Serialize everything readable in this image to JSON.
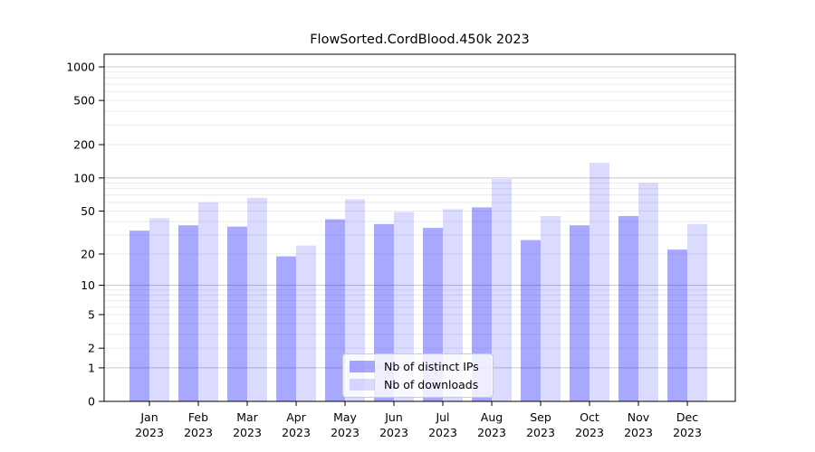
{
  "figure": {
    "background_color": "#ffffff",
    "axis_color": "#000000"
  },
  "chart_data": {
    "type": "bar",
    "title": "FlowSorted.CordBlood.450k 2023",
    "scale": "log1p",
    "grid": "on",
    "legend_position": "lower center",
    "categories": [
      {
        "month": "Jan",
        "year": "2023"
      },
      {
        "month": "Feb",
        "year": "2023"
      },
      {
        "month": "Mar",
        "year": "2023"
      },
      {
        "month": "Apr",
        "year": "2023"
      },
      {
        "month": "May",
        "year": "2023"
      },
      {
        "month": "Jun",
        "year": "2023"
      },
      {
        "month": "Jul",
        "year": "2023"
      },
      {
        "month": "Aug",
        "year": "2023"
      },
      {
        "month": "Sep",
        "year": "2023"
      },
      {
        "month": "Oct",
        "year": "2023"
      },
      {
        "month": "Nov",
        "year": "2023"
      },
      {
        "month": "Dec",
        "year": "2023"
      }
    ],
    "series": [
      {
        "name": "Nb of distinct IPs",
        "color": "#0000FF57",
        "values": [
          33,
          37,
          36,
          19,
          42,
          38,
          35,
          54,
          27,
          37,
          45,
          22
        ]
      },
      {
        "name": "Nb of downloads",
        "color": "#0000FF24",
        "values": [
          43,
          60,
          66,
          24,
          64,
          49,
          52,
          98,
          45,
          137,
          90,
          38
        ]
      }
    ],
    "ylim": [
      0,
      1300
    ],
    "y_ticks": [
      {
        "value": 0,
        "label": "0"
      },
      {
        "value": 1,
        "label": "1"
      },
      {
        "value": 2,
        "label": "2"
      },
      {
        "value": 5,
        "label": "5"
      },
      {
        "value": 10,
        "label": "10"
      },
      {
        "value": 20,
        "label": "20"
      },
      {
        "value": 50,
        "label": "50"
      },
      {
        "value": 100,
        "label": "100"
      },
      {
        "value": 200,
        "label": "200"
      },
      {
        "value": 500,
        "label": "500"
      },
      {
        "value": 1000,
        "label": "1000"
      }
    ],
    "gridlines": {
      "major_values": [
        1,
        10,
        100,
        1000
      ],
      "minor_values": [
        2,
        3,
        4,
        5,
        6,
        7,
        8,
        9,
        20,
        30,
        40,
        50,
        60,
        70,
        80,
        90,
        200,
        300,
        400,
        500,
        600,
        700,
        800,
        900
      ],
      "major_color": "#c8c8c8",
      "minor_color": "#ebebeb"
    }
  }
}
